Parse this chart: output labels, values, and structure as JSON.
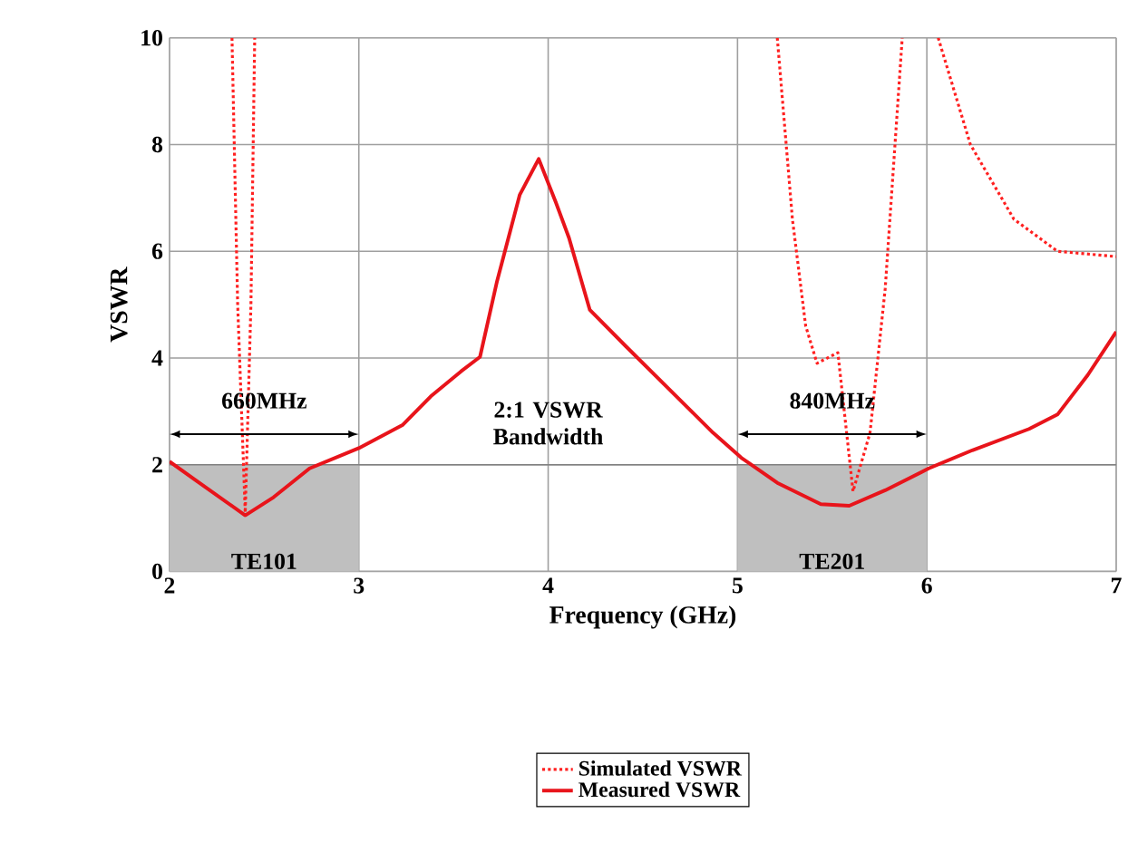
{
  "chart_data": {
    "type": "line",
    "xlabel": "Frequency (GHz)",
    "ylabel": "VSWR",
    "xlim": [
      2,
      7
    ],
    "ylim": [
      0,
      10
    ],
    "xticks": [
      2,
      3,
      4,
      5,
      6,
      7
    ],
    "yticks": [
      0,
      2,
      4,
      6,
      8,
      10
    ],
    "grid": true,
    "legend": "bottom",
    "series": [
      {
        "name": "Simulated VSWR",
        "color": "#ff2020",
        "line_style": "dotted",
        "x": [
          2.33,
          2.36,
          2.4,
          2.43,
          2.45,
          4.0,
          5.21,
          5.29,
          5.36,
          5.42,
          5.53,
          5.61,
          5.7,
          5.78,
          5.87,
          6.0,
          6.06,
          6.23,
          6.46,
          6.69,
          7.0
        ],
        "values": [
          10,
          5,
          1.1,
          5,
          10,
          null,
          10,
          6.6,
          4.6,
          3.9,
          4.1,
          1.5,
          2.6,
          5.3,
          10,
          null,
          10,
          8.0,
          6.6,
          6.0,
          5.9
        ]
      },
      {
        "name": "Measured VSWR",
        "color": "#e8141b",
        "line_style": "solid",
        "x": [
          2.0,
          2.13,
          2.4,
          2.55,
          2.74,
          3.0,
          3.23,
          3.38,
          3.54,
          3.64,
          3.73,
          3.85,
          3.95,
          4.04,
          4.11,
          4.22,
          4.41,
          4.64,
          4.87,
          5.02,
          5.21,
          5.44,
          5.59,
          5.78,
          6.01,
          6.24,
          6.54,
          6.69,
          6.85,
          7.0
        ],
        "values": [
          2.06,
          1.73,
          1.05,
          1.39,
          1.93,
          2.31,
          2.74,
          3.28,
          3.75,
          4.02,
          5.44,
          7.06,
          7.73,
          6.92,
          6.25,
          4.9,
          4.22,
          3.41,
          2.6,
          2.13,
          1.66,
          1.26,
          1.23,
          1.52,
          1.93,
          2.27,
          2.67,
          2.94,
          3.68,
          4.49
        ]
      }
    ],
    "ref_lines": [
      {
        "axis": "y",
        "value": 2,
        "color": "#808080"
      }
    ],
    "bands": [
      {
        "axis": "x",
        "from": 2,
        "to": 3,
        "label": "TE101",
        "color": "#bfbfbf"
      },
      {
        "axis": "x",
        "from": 5,
        "to": 6,
        "label": "TE201",
        "color": "#bfbfbf"
      }
    ],
    "annotations": [
      "660MHz",
      "2:1 VSWR Bandwidth",
      "840MHz"
    ]
  }
}
